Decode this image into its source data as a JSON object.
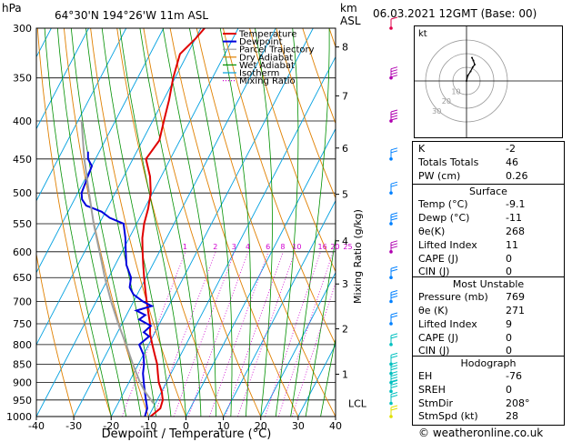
{
  "header": {
    "pressure_unit": "hPa",
    "location": "64°30'N 194°26'W 11m ASL",
    "km_label": "km",
    "asl_label": "ASL",
    "datetime": "06.03.2021 12GMT (Base: 00)"
  },
  "footer": {
    "copyright": "© weatheronline.co.uk"
  },
  "colors": {
    "temperature": "#e00000",
    "dewpoint": "#0000dd",
    "parcel": "#a0a0a0",
    "dry_adiabat": "#e08000",
    "wet_adiabat": "#009000",
    "isotherm": "#00a0e0",
    "mixing_ratio": "#d000d0"
  },
  "chart_data": [
    {
      "type": "line",
      "title": "",
      "xlabel": "Dewpoint / Temperature (°C)",
      "ylabel": "",
      "right_axis_label": "Mixing Ratio (g/kg)",
      "xlim": [
        -40,
        40
      ],
      "ylim": [
        1000,
        300
      ],
      "y_scale": "log",
      "skew": true,
      "x_ticks": [
        "-40",
        "-30",
        "-20",
        "-10",
        "0",
        "10",
        "20",
        "30",
        "40"
      ],
      "pressure_levels": [
        300,
        350,
        400,
        450,
        500,
        550,
        600,
        650,
        700,
        750,
        800,
        850,
        900,
        950,
        1000
      ],
      "km_ticks": [
        {
          "km": "1",
          "p": 877
        },
        {
          "km": "2",
          "p": 762
        },
        {
          "km": "3",
          "p": 663
        },
        {
          "km": "4",
          "p": 580
        },
        {
          "km": "5",
          "p": 502
        },
        {
          "km": "6",
          "p": 435
        },
        {
          "km": "7",
          "p": 370
        },
        {
          "km": "8",
          "p": 318
        }
      ],
      "lcl": {
        "label": "LCL",
        "p": 960
      },
      "mixing_ratio_labels": [
        "1",
        "2",
        "3",
        "4",
        "6",
        "8",
        "10",
        "16",
        "20",
        "25"
      ],
      "legend": [
        "Temperature",
        "Dewpoint",
        "Parcel Trajectory",
        "Dry Adiabat",
        "Wet Adiabat",
        "Isotherm",
        "Mixing Ratio"
      ],
      "legend_position": "top-right",
      "series": [
        {
          "name": "Temperature",
          "points": [
            [
              1000,
              -9.5
            ],
            [
              975,
              -8
            ],
            [
              950,
              -8.5
            ],
            [
              925,
              -10
            ],
            [
              900,
              -12
            ],
            [
              875,
              -13.5
            ],
            [
              850,
              -15
            ],
            [
              825,
              -17
            ],
            [
              800,
              -19
            ],
            [
              775,
              -21
            ],
            [
              750,
              -22.5
            ],
            [
              725,
              -24.5
            ],
            [
              700,
              -26.5
            ],
            [
              675,
              -28.5
            ],
            [
              650,
              -30.5
            ],
            [
              625,
              -32.5
            ],
            [
              600,
              -34.5
            ],
            [
              575,
              -36.5
            ],
            [
              550,
              -38
            ],
            [
              525,
              -39
            ],
            [
              500,
              -40.5
            ],
            [
              475,
              -43
            ],
            [
              450,
              -46.5
            ],
            [
              425,
              -45.5
            ],
            [
              400,
              -47
            ],
            [
              375,
              -48.5
            ],
            [
              350,
              -50.5
            ],
            [
              325,
              -52
            ],
            [
              310,
              -50
            ],
            [
              300,
              -49
            ]
          ]
        },
        {
          "name": "Dewpoint",
          "points": [
            [
              1000,
              -11
            ],
            [
              975,
              -11.5
            ],
            [
              950,
              -13
            ],
            [
              925,
              -14.5
            ],
            [
              900,
              -16
            ],
            [
              875,
              -17.5
            ],
            [
              850,
              -18.5
            ],
            [
              825,
              -20
            ],
            [
              800,
              -22.5
            ],
            [
              780,
              -21
            ],
            [
              770,
              -23
            ],
            [
              755,
              -22
            ],
            [
              740,
              -26
            ],
            [
              730,
              -25
            ],
            [
              720,
              -28
            ],
            [
              710,
              -24.5
            ],
            [
              700,
              -27.5
            ],
            [
              685,
              -31
            ],
            [
              670,
              -33
            ],
            [
              650,
              -34
            ],
            [
              625,
              -37
            ],
            [
              600,
              -39
            ],
            [
              575,
              -41
            ],
            [
              550,
              -43.5
            ],
            [
              540,
              -48
            ],
            [
              530,
              -51
            ],
            [
              520,
              -56
            ],
            [
              510,
              -58
            ],
            [
              500,
              -59
            ],
            [
              480,
              -59.5
            ],
            [
              460,
              -60
            ],
            [
              450,
              -62
            ],
            [
              440,
              -63
            ]
          ]
        },
        {
          "name": "Parcel Trajectory",
          "points": [
            [
              960,
              -10.5
            ],
            [
              925,
              -14.5
            ],
            [
              900,
              -17
            ],
            [
              850,
              -21.5
            ],
            [
              800,
              -26
            ],
            [
              750,
              -31
            ],
            [
              700,
              -36
            ],
            [
              650,
              -41
            ],
            [
              600,
              -46
            ],
            [
              550,
              -51.5
            ],
            [
              500,
              -57
            ],
            [
              450,
              -63
            ],
            [
              400,
              -69
            ]
          ]
        }
      ]
    },
    {
      "type": "scatter",
      "title": "",
      "label": "kt",
      "ring_labels": [
        "10",
        "20",
        "30"
      ],
      "points": [
        [
          0,
          0
        ],
        [
          2,
          8
        ],
        [
          6,
          14
        ],
        [
          9,
          20
        ],
        [
          12,
          24
        ],
        [
          10,
          30
        ],
        [
          8,
          34
        ]
      ]
    }
  ],
  "indices": {
    "rows": [
      {
        "k": "K",
        "v": "-2"
      },
      {
        "k": "Totals Totals",
        "v": "46"
      },
      {
        "k": "PW (cm)",
        "v": "0.26"
      }
    ]
  },
  "surface": {
    "title": "Surface",
    "rows": [
      {
        "k": "Temp (°C)",
        "v": "-9.1"
      },
      {
        "k": "Dewp (°C)",
        "v": "-11"
      },
      {
        "k": "θe(K)",
        "v": "268"
      },
      {
        "k": "Lifted Index",
        "v": "11"
      },
      {
        "k": "CAPE (J)",
        "v": "0"
      },
      {
        "k": "CIN (J)",
        "v": "0"
      }
    ]
  },
  "most_unstable": {
    "title": "Most Unstable",
    "rows": [
      {
        "k": "Pressure (mb)",
        "v": "769"
      },
      {
        "k": "θe (K)",
        "v": "271"
      },
      {
        "k": "Lifted Index",
        "v": "9"
      },
      {
        "k": "CAPE (J)",
        "v": "0"
      },
      {
        "k": "CIN (J)",
        "v": "0"
      }
    ]
  },
  "hodograph_table": {
    "title": "Hodograph",
    "rows": [
      {
        "k": "EH",
        "v": "-76"
      },
      {
        "k": "SREH",
        "v": "0"
      },
      {
        "k": "StmDir",
        "v": "208°"
      },
      {
        "k": "StmSpd (kt)",
        "v": "28"
      }
    ]
  },
  "wind_profile": [
    {
      "p": 1000,
      "color": "#e0e000",
      "barbs": 2
    },
    {
      "p": 960,
      "color": "#00c0c0",
      "barbs": 2
    },
    {
      "p": 925,
      "color": "#00c0c0",
      "barbs": 3
    },
    {
      "p": 900,
      "color": "#00c0c0",
      "barbs": 4
    },
    {
      "p": 875,
      "color": "#00c0c0",
      "barbs": 3
    },
    {
      "p": 850,
      "color": "#00c0c0",
      "barbs": 2
    },
    {
      "p": 800,
      "color": "#00c0c0",
      "barbs": 2
    },
    {
      "p": 750,
      "color": "#0080ff",
      "barbs": 2
    },
    {
      "p": 700,
      "color": "#0080ff",
      "barbs": 3
    },
    {
      "p": 650,
      "color": "#0080ff",
      "barbs": 2
    },
    {
      "p": 600,
      "color": "#b000b0",
      "barbs": 3
    },
    {
      "p": 550,
      "color": "#0080ff",
      "barbs": 3
    },
    {
      "p": 500,
      "color": "#0080ff",
      "barbs": 2
    },
    {
      "p": 450,
      "color": "#0080ff",
      "barbs": 2
    },
    {
      "p": 400,
      "color": "#b000b0",
      "barbs": 4
    },
    {
      "p": 350,
      "color": "#b000b0",
      "barbs": 4
    },
    {
      "p": 300,
      "color": "#e0004a",
      "barbs": 1
    }
  ]
}
